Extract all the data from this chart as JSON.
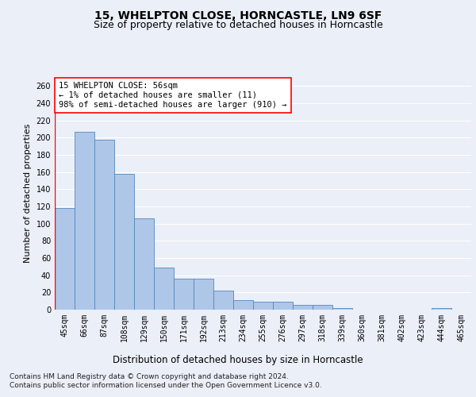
{
  "title1": "15, WHELPTON CLOSE, HORNCASTLE, LN9 6SF",
  "title2": "Size of property relative to detached houses in Horncastle",
  "xlabel": "Distribution of detached houses by size in Horncastle",
  "ylabel": "Number of detached properties",
  "categories": [
    "45sqm",
    "66sqm",
    "87sqm",
    "108sqm",
    "129sqm",
    "150sqm",
    "171sqm",
    "192sqm",
    "213sqm",
    "234sqm",
    "255sqm",
    "276sqm",
    "297sqm",
    "318sqm",
    "339sqm",
    "360sqm",
    "381sqm",
    "402sqm",
    "423sqm",
    "444sqm",
    "465sqm"
  ],
  "values": [
    118,
    207,
    198,
    158,
    106,
    49,
    36,
    36,
    22,
    11,
    9,
    9,
    6,
    6,
    2,
    0,
    0,
    0,
    0,
    2,
    0
  ],
  "bar_color": "#aec6e8",
  "bar_edge_color": "#5588bb",
  "annotation_box_text": "15 WHELPTON CLOSE: 56sqm\n← 1% of detached houses are smaller (11)\n98% of semi-detached houses are larger (910) →",
  "footer_line1": "Contains HM Land Registry data © Crown copyright and database right 2024.",
  "footer_line2": "Contains public sector information licensed under the Open Government Licence v3.0.",
  "ylim": [
    0,
    270
  ],
  "yticks": [
    0,
    20,
    40,
    60,
    80,
    100,
    120,
    140,
    160,
    180,
    200,
    220,
    240,
    260
  ],
  "bg_color": "#eaeff8",
  "grid_color": "#ffffff",
  "title1_fontsize": 10,
  "title2_fontsize": 9,
  "xlabel_fontsize": 8.5,
  "ylabel_fontsize": 8,
  "tick_fontsize": 7,
  "annotation_fontsize": 7.5
}
